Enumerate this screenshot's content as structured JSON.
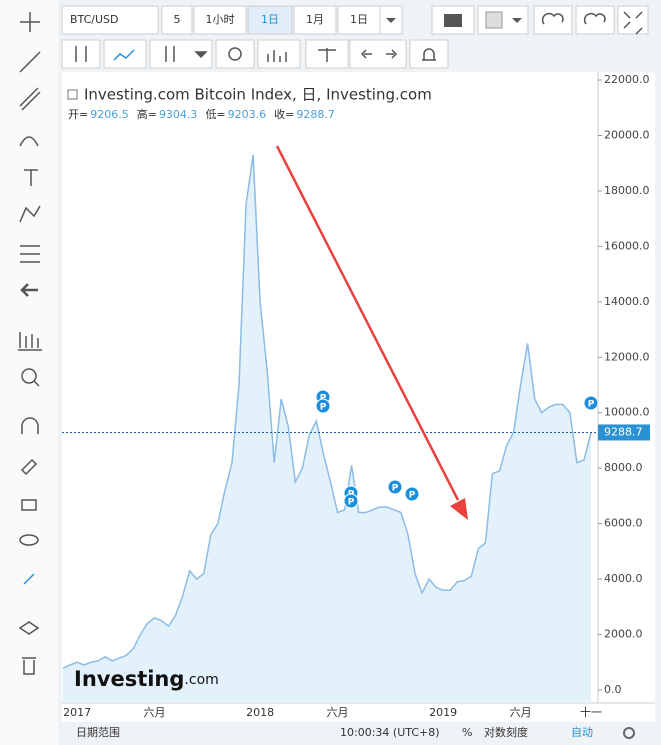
{
  "toolbar": {
    "symbol": "BTC/USD",
    "buttons": [
      "5",
      "1小时",
      "1日",
      "1月",
      "1日"
    ]
  },
  "legend": {
    "ohlc": [
      {
        "label": "开=",
        "value": "9206.5"
      },
      {
        "label": "高=",
        "value": "9304.3"
      },
      {
        "label": "低=",
        "value": "9203.6"
      },
      {
        "label": "收=",
        "value": "9288.7"
      }
    ]
  },
  "event_marker": "P",
  "logo": {
    "main": "Investing",
    "suffix": ".com"
  },
  "footer": {
    "range": "日期范围",
    "time": "10:00:34 (UTC+8)",
    "percent": "%",
    "log": "对数刻度",
    "auto": "自动"
  },
  "chart_data": {
    "type": "area",
    "title": "Investing.com Bitcoin Index, 日, Investing.com",
    "color": "#8cbce6",
    "fill": "#e3f1fa",
    "categories": [
      null,
      null,
      "2017",
      null,
      null,
      null,
      null,
      null,
      null,
      null,
      null,
      null,
      null,
      "六月",
      null,
      null,
      null,
      null,
      null,
      null,
      null,
      null,
      null,
      null,
      null,
      null,
      null,
      null,
      "2018",
      null,
      null,
      null,
      null,
      null,
      null,
      null,
      null,
      null,
      null,
      "六月",
      null,
      null,
      null,
      null,
      null,
      null,
      null,
      null,
      null,
      null,
      null,
      null,
      null,
      null,
      "2019",
      null,
      null,
      null,
      null,
      null,
      null,
      null,
      null,
      null,
      null,
      "六月",
      null,
      null,
      null,
      null,
      null,
      null,
      null,
      null,
      null,
      "十一"
    ],
    "values": [
      780,
      900,
      1000,
      900,
      1000,
      1050,
      1200,
      1050,
      1150,
      1250,
      1500,
      2000,
      2400,
      2600,
      2500,
      2300,
      2700,
      3400,
      4300,
      4000,
      4200,
      5600,
      6000,
      7200,
      8200,
      11000,
      17500,
      19300,
      14000,
      11500,
      8200,
      10500,
      9500,
      7500,
      8000,
      9200,
      9700,
      8500,
      7500,
      6400,
      6500,
      8100,
      6400,
      6400,
      6500,
      6600,
      6600,
      6500,
      6400,
      5600,
      4200,
      3500,
      4000,
      3700,
      3600,
      3600,
      3900,
      3950,
      4100,
      5100,
      5300,
      7800,
      7900,
      8800,
      9300,
      11000,
      12500,
      10500,
      10000,
      10200,
      10300,
      10300,
      10000,
      8200,
      8300,
      9288.7
    ],
    "ylim": [
      -470,
      22290
    ],
    "yticks": [
      {
        "value": 0,
        "label": "0.0"
      },
      {
        "value": 2000,
        "label": "2000.0"
      },
      {
        "value": 4000,
        "label": "4000.0"
      },
      {
        "value": 6000,
        "label": "6000.0"
      },
      {
        "value": 8000,
        "label": "8000.0"
      },
      {
        "value": 10000,
        "label": "10000.0"
      },
      {
        "value": 12000,
        "label": "12000.0"
      },
      {
        "value": 14000,
        "label": "14000.0"
      },
      {
        "value": 16000,
        "label": "16000.0"
      },
      {
        "value": 18000,
        "label": "18000.0"
      },
      {
        "value": 20000,
        "label": "20000.0"
      },
      {
        "value": 22000,
        "label": "22000.0"
      }
    ],
    "grid": false
  }
}
